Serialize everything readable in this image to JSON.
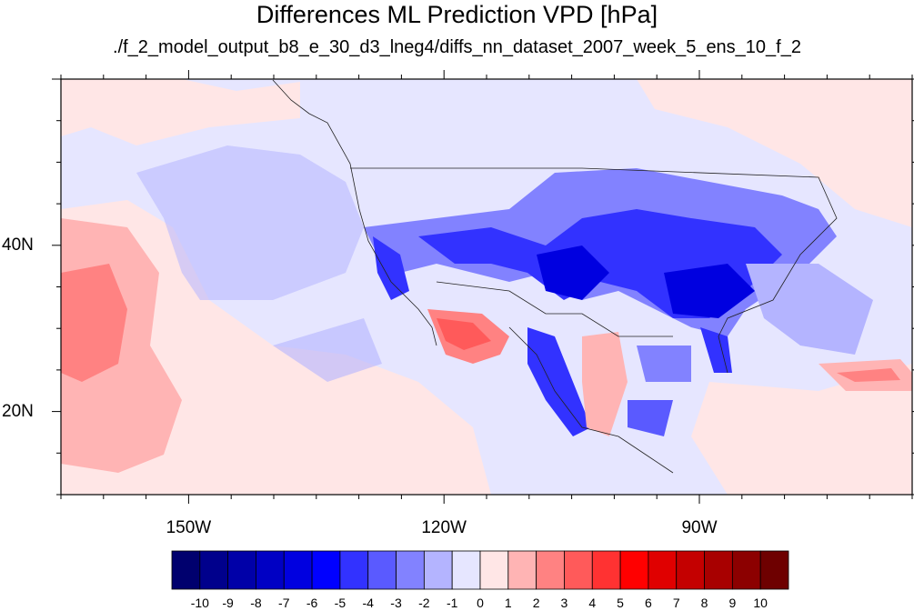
{
  "title": "Differences ML Prediction VPD [hPa]",
  "subtitle": "./f_2_model_output_b8_e_30_d3_lneg4/diffs_nn_dataset_2007_week_5_ens_10_f_2",
  "map": {
    "lon_range": [
      -165,
      -65
    ],
    "lat_range": [
      10,
      60
    ],
    "lat_labels": [
      {
        "lat": 40,
        "text": "40N"
      },
      {
        "lat": 20,
        "text": "20N"
      }
    ],
    "lon_labels": [
      {
        "lon": -150,
        "text": "150W"
      },
      {
        "lon": -120,
        "text": "120W"
      },
      {
        "lon": -90,
        "text": "90W"
      }
    ]
  },
  "colorbar": {
    "labels": [
      "-10",
      "-9",
      "-8",
      "-7",
      "-6",
      "-5",
      "-4",
      "-3",
      "-2",
      "-1",
      "0",
      "1",
      "2",
      "3",
      "4",
      "5",
      "6",
      "7",
      "8",
      "9",
      "10"
    ],
    "colors": [
      "#00006e",
      "#00008c",
      "#0000a8",
      "#0000c4",
      "#0000e0",
      "#0000ff",
      "#3232ff",
      "#5a5aff",
      "#8282ff",
      "#b4b4ff",
      "#e6e6ff",
      "#ffe6e6",
      "#ffb4b4",
      "#ff8282",
      "#ff5a5a",
      "#ff3232",
      "#ff0000",
      "#e00000",
      "#c40000",
      "#a80000",
      "#8c0000",
      "#6e0000"
    ]
  }
}
